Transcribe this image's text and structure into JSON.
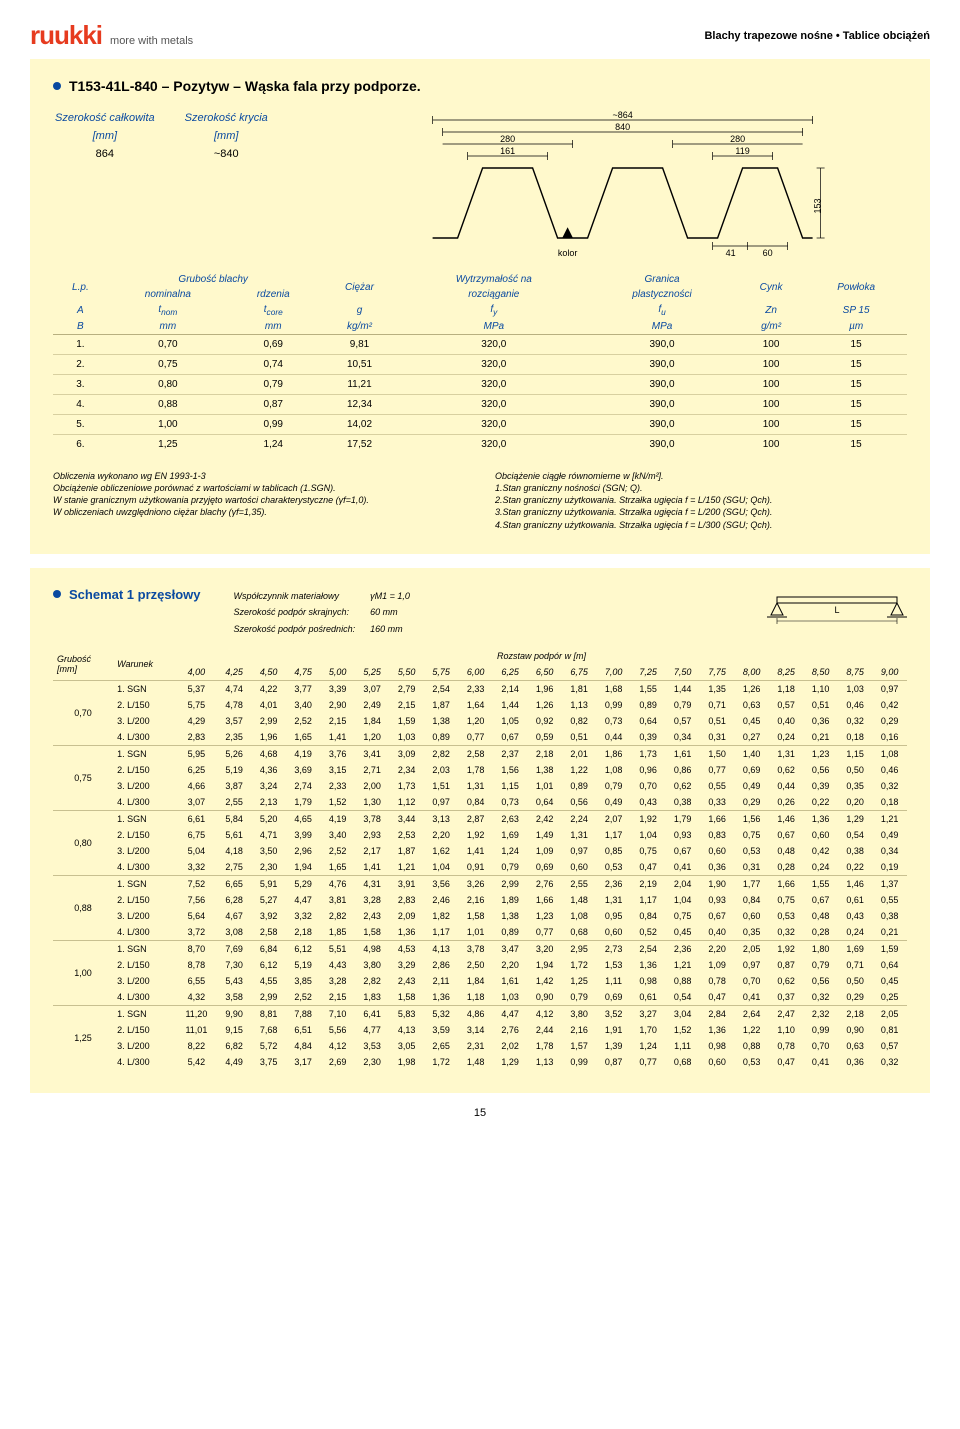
{
  "brand": {
    "logo_text": "ruukki",
    "logo_color": "#e63b1f",
    "tagline": "more with metals"
  },
  "doc_title": "Blachy trapezowe nośne • Tablice obciążeń",
  "section1": {
    "bullet_color": "#0a4aa0",
    "title": "T153-41L-840 – Pozytyw – Wąska fala przy podporze.",
    "dims": {
      "total_label": "Szerokość całkowita",
      "cover_label": "Szerokość krycia",
      "unit": "[mm]",
      "total_val": "864",
      "cover_val": "~840"
    },
    "profile": {
      "top_overall": "~864",
      "top_cover": "840",
      "pitch": "280",
      "pitch2": "280",
      "rib": "161",
      "rib2": "119",
      "height": "153",
      "flange_a": "41",
      "flange_b": "60",
      "kolor": "kolor",
      "outline_color": "#000",
      "dim_color": "#000"
    }
  },
  "spec": {
    "headers": {
      "lp": "L.p.",
      "grub": "Grubość blachy",
      "nom": "nominalna",
      "rdz": "rdzenia",
      "ciezar": "Ciężar",
      "wytrz": "Wytrzymałość na",
      "rozc": "rozciąganie",
      "gran": "Granica",
      "plast": "plastyczności",
      "cynk": "Cynk",
      "powloka": "Powłoka",
      "A": "A",
      "B": "B",
      "tnom": "t",
      "tnom_sub": "nom",
      "tcore": "t",
      "tcore_sub": "core",
      "g": "g",
      "fy": "f",
      "fy_sub": "y",
      "fu": "f",
      "fu_sub": "u",
      "zn": "Zn",
      "sp": "SP 15",
      "mm": "mm",
      "kgm2": "kg/m²",
      "mpa": "MPa",
      "gm2": "g/m²",
      "um": "µm"
    },
    "rows": [
      {
        "n": "1.",
        "tnom": "0,70",
        "tcore": "0,69",
        "g": "9,81",
        "fy": "320,0",
        "fu": "390,0",
        "zn": "100",
        "sp": "15"
      },
      {
        "n": "2.",
        "tnom": "0,75",
        "tcore": "0,74",
        "g": "10,51",
        "fy": "320,0",
        "fu": "390,0",
        "zn": "100",
        "sp": "15"
      },
      {
        "n": "3.",
        "tnom": "0,80",
        "tcore": "0,79",
        "g": "11,21",
        "fy": "320,0",
        "fu": "390,0",
        "zn": "100",
        "sp": "15"
      },
      {
        "n": "4.",
        "tnom": "0,88",
        "tcore": "0,87",
        "g": "12,34",
        "fy": "320,0",
        "fu": "390,0",
        "zn": "100",
        "sp": "15"
      },
      {
        "n": "5.",
        "tnom": "1,00",
        "tcore": "0,99",
        "g": "14,02",
        "fy": "320,0",
        "fu": "390,0",
        "zn": "100",
        "sp": "15"
      },
      {
        "n": "6.",
        "tnom": "1,25",
        "tcore": "1,24",
        "g": "17,52",
        "fy": "320,0",
        "fu": "390,0",
        "zn": "100",
        "sp": "15"
      }
    ]
  },
  "notes": {
    "left": [
      "Obliczenia wykonano wg EN 1993-1-3",
      "Obciążenie obliczeniowe porównać z wartościami w tablicach (1.SGN).",
      "W stanie granicznym użytkowania przyjęto wartości charakterystyczne (γf=1,0).",
      "W obliczeniach uwzględniono ciężar blachy (γf=1,35)."
    ],
    "right": [
      "Obciążenie ciągłe równomierne w [kN/m²].",
      "1.Stan graniczny nośności (SGN; Q).",
      "2.Stan graniczny użytkowania. Strzałka ugięcia f = L/150 (SGU; Qch).",
      "3.Stan graniczny użytkowania. Strzałka ugięcia f = L/200 (SGU; Qch).",
      "4.Stan graniczny użytkowania. Strzałka ugięcia f = L/300 (SGU; Qch)."
    ]
  },
  "schema": {
    "bullet_color": "#0a4aa0",
    "title": "Schemat 1 przęsłowy",
    "meta": {
      "l1": "Współczynnik materiałowy",
      "v1": "γM1 = 1,0",
      "l2": "Szerokość podpór skrajnych:",
      "v2": "60 mm",
      "l3": "Szerokość podpór pośrednich:",
      "v3": "160 mm"
    },
    "beam_label": "L"
  },
  "load": {
    "col_group_label_left": "Grubość\n[mm]",
    "warunek": "Warunek",
    "rozstaw": "Rozstaw podpór w [m]",
    "spans": [
      "4,00",
      "4,25",
      "4,50",
      "4,75",
      "5,00",
      "5,25",
      "5,50",
      "5,75",
      "6,00",
      "6,25",
      "6,50",
      "6,75",
      "7,00",
      "7,25",
      "7,50",
      "7,75",
      "8,00",
      "8,25",
      "8,50",
      "8,75",
      "9,00"
    ],
    "conditions": [
      "1. SGN",
      "2. L/150",
      "3. L/200",
      "4. L/300"
    ],
    "groups": [
      {
        "th": "0,70",
        "rows": [
          [
            "5,37",
            "4,74",
            "4,22",
            "3,77",
            "3,39",
            "3,07",
            "2,79",
            "2,54",
            "2,33",
            "2,14",
            "1,96",
            "1,81",
            "1,68",
            "1,55",
            "1,44",
            "1,35",
            "1,26",
            "1,18",
            "1,10",
            "1,03",
            "0,97"
          ],
          [
            "5,75",
            "4,78",
            "4,01",
            "3,40",
            "2,90",
            "2,49",
            "2,15",
            "1,87",
            "1,64",
            "1,44",
            "1,26",
            "1,13",
            "0,99",
            "0,89",
            "0,79",
            "0,71",
            "0,63",
            "0,57",
            "0,51",
            "0,46",
            "0,42"
          ],
          [
            "4,29",
            "3,57",
            "2,99",
            "2,52",
            "2,15",
            "1,84",
            "1,59",
            "1,38",
            "1,20",
            "1,05",
            "0,92",
            "0,82",
            "0,73",
            "0,64",
            "0,57",
            "0,51",
            "0,45",
            "0,40",
            "0,36",
            "0,32",
            "0,29"
          ],
          [
            "2,83",
            "2,35",
            "1,96",
            "1,65",
            "1,41",
            "1,20",
            "1,03",
            "0,89",
            "0,77",
            "0,67",
            "0,59",
            "0,51",
            "0,44",
            "0,39",
            "0,34",
            "0,31",
            "0,27",
            "0,24",
            "0,21",
            "0,18",
            "0,16"
          ]
        ]
      },
      {
        "th": "0,75",
        "rows": [
          [
            "5,95",
            "5,26",
            "4,68",
            "4,19",
            "3,76",
            "3,41",
            "3,09",
            "2,82",
            "2,58",
            "2,37",
            "2,18",
            "2,01",
            "1,86",
            "1,73",
            "1,61",
            "1,50",
            "1,40",
            "1,31",
            "1,23",
            "1,15",
            "1,08"
          ],
          [
            "6,25",
            "5,19",
            "4,36",
            "3,69",
            "3,15",
            "2,71",
            "2,34",
            "2,03",
            "1,78",
            "1,56",
            "1,38",
            "1,22",
            "1,08",
            "0,96",
            "0,86",
            "0,77",
            "0,69",
            "0,62",
            "0,56",
            "0,50",
            "0,46"
          ],
          [
            "4,66",
            "3,87",
            "3,24",
            "2,74",
            "2,33",
            "2,00",
            "1,73",
            "1,51",
            "1,31",
            "1,15",
            "1,01",
            "0,89",
            "0,79",
            "0,70",
            "0,62",
            "0,55",
            "0,49",
            "0,44",
            "0,39",
            "0,35",
            "0,32"
          ],
          [
            "3,07",
            "2,55",
            "2,13",
            "1,79",
            "1,52",
            "1,30",
            "1,12",
            "0,97",
            "0,84",
            "0,73",
            "0,64",
            "0,56",
            "0,49",
            "0,43",
            "0,38",
            "0,33",
            "0,29",
            "0,26",
            "0,22",
            "0,20",
            "0,18"
          ]
        ]
      },
      {
        "th": "0,80",
        "rows": [
          [
            "6,61",
            "5,84",
            "5,20",
            "4,65",
            "4,19",
            "3,78",
            "3,44",
            "3,13",
            "2,87",
            "2,63",
            "2,42",
            "2,24",
            "2,07",
            "1,92",
            "1,79",
            "1,66",
            "1,56",
            "1,46",
            "1,36",
            "1,29",
            "1,21"
          ],
          [
            "6,75",
            "5,61",
            "4,71",
            "3,99",
            "3,40",
            "2,93",
            "2,53",
            "2,20",
            "1,92",
            "1,69",
            "1,49",
            "1,31",
            "1,17",
            "1,04",
            "0,93",
            "0,83",
            "0,75",
            "0,67",
            "0,60",
            "0,54",
            "0,49"
          ],
          [
            "5,04",
            "4,18",
            "3,50",
            "2,96",
            "2,52",
            "2,17",
            "1,87",
            "1,62",
            "1,41",
            "1,24",
            "1,09",
            "0,97",
            "0,85",
            "0,75",
            "0,67",
            "0,60",
            "0,53",
            "0,48",
            "0,42",
            "0,38",
            "0,34"
          ],
          [
            "3,32",
            "2,75",
            "2,30",
            "1,94",
            "1,65",
            "1,41",
            "1,21",
            "1,04",
            "0,91",
            "0,79",
            "0,69",
            "0,60",
            "0,53",
            "0,47",
            "0,41",
            "0,36",
            "0,31",
            "0,28",
            "0,24",
            "0,22",
            "0,19"
          ]
        ]
      },
      {
        "th": "0,88",
        "rows": [
          [
            "7,52",
            "6,65",
            "5,91",
            "5,29",
            "4,76",
            "4,31",
            "3,91",
            "3,56",
            "3,26",
            "2,99",
            "2,76",
            "2,55",
            "2,36",
            "2,19",
            "2,04",
            "1,90",
            "1,77",
            "1,66",
            "1,55",
            "1,46",
            "1,37"
          ],
          [
            "7,56",
            "6,28",
            "5,27",
            "4,47",
            "3,81",
            "3,28",
            "2,83",
            "2,46",
            "2,16",
            "1,89",
            "1,66",
            "1,48",
            "1,31",
            "1,17",
            "1,04",
            "0,93",
            "0,84",
            "0,75",
            "0,67",
            "0,61",
            "0,55"
          ],
          [
            "5,64",
            "4,67",
            "3,92",
            "3,32",
            "2,82",
            "2,43",
            "2,09",
            "1,82",
            "1,58",
            "1,38",
            "1,23",
            "1,08",
            "0,95",
            "0,84",
            "0,75",
            "0,67",
            "0,60",
            "0,53",
            "0,48",
            "0,43",
            "0,38"
          ],
          [
            "3,72",
            "3,08",
            "2,58",
            "2,18",
            "1,85",
            "1,58",
            "1,36",
            "1,17",
            "1,01",
            "0,89",
            "0,77",
            "0,68",
            "0,60",
            "0,52",
            "0,45",
            "0,40",
            "0,35",
            "0,32",
            "0,28",
            "0,24",
            "0,21"
          ]
        ]
      },
      {
        "th": "1,00",
        "rows": [
          [
            "8,70",
            "7,69",
            "6,84",
            "6,12",
            "5,51",
            "4,98",
            "4,53",
            "4,13",
            "3,78",
            "3,47",
            "3,20",
            "2,95",
            "2,73",
            "2,54",
            "2,36",
            "2,20",
            "2,05",
            "1,92",
            "1,80",
            "1,69",
            "1,59"
          ],
          [
            "8,78",
            "7,30",
            "6,12",
            "5,19",
            "4,43",
            "3,80",
            "3,29",
            "2,86",
            "2,50",
            "2,20",
            "1,94",
            "1,72",
            "1,53",
            "1,36",
            "1,21",
            "1,09",
            "0,97",
            "0,87",
            "0,79",
            "0,71",
            "0,64"
          ],
          [
            "6,55",
            "5,43",
            "4,55",
            "3,85",
            "3,28",
            "2,82",
            "2,43",
            "2,11",
            "1,84",
            "1,61",
            "1,42",
            "1,25",
            "1,11",
            "0,98",
            "0,88",
            "0,78",
            "0,70",
            "0,62",
            "0,56",
            "0,50",
            "0,45"
          ],
          [
            "4,32",
            "3,58",
            "2,99",
            "2,52",
            "2,15",
            "1,83",
            "1,58",
            "1,36",
            "1,18",
            "1,03",
            "0,90",
            "0,79",
            "0,69",
            "0,61",
            "0,54",
            "0,47",
            "0,41",
            "0,37",
            "0,32",
            "0,29",
            "0,25"
          ]
        ]
      },
      {
        "th": "1,25",
        "rows": [
          [
            "11,20",
            "9,90",
            "8,81",
            "7,88",
            "7,10",
            "6,41",
            "5,83",
            "5,32",
            "4,86",
            "4,47",
            "4,12",
            "3,80",
            "3,52",
            "3,27",
            "3,04",
            "2,84",
            "2,64",
            "2,47",
            "2,32",
            "2,18",
            "2,05"
          ],
          [
            "11,01",
            "9,15",
            "7,68",
            "6,51",
            "5,56",
            "4,77",
            "4,13",
            "3,59",
            "3,14",
            "2,76",
            "2,44",
            "2,16",
            "1,91",
            "1,70",
            "1,52",
            "1,36",
            "1,22",
            "1,10",
            "0,99",
            "0,90",
            "0,81"
          ],
          [
            "8,22",
            "6,82",
            "5,72",
            "4,84",
            "4,12",
            "3,53",
            "3,05",
            "2,65",
            "2,31",
            "2,02",
            "1,78",
            "1,57",
            "1,39",
            "1,24",
            "1,11",
            "0,98",
            "0,88",
            "0,78",
            "0,70",
            "0,63",
            "0,57"
          ],
          [
            "5,42",
            "4,49",
            "3,75",
            "3,17",
            "2,69",
            "2,30",
            "1,98",
            "1,72",
            "1,48",
            "1,29",
            "1,13",
            "0,99",
            "0,87",
            "0,77",
            "0,68",
            "0,60",
            "0,53",
            "0,47",
            "0,41",
            "0,36",
            "0,32"
          ]
        ]
      }
    ]
  },
  "pagenum": "15",
  "colors": {
    "yellow": "#fff9cc",
    "blue": "#0a4aa0",
    "orange": "#e63b1f"
  }
}
